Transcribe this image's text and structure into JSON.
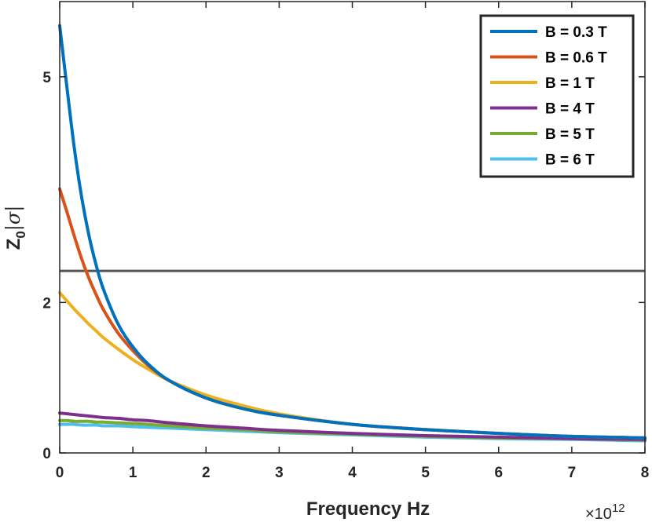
{
  "chart_data": {
    "type": "line",
    "xlabel": "Frequency Hz",
    "ylabel_main": "Z",
    "ylabel_sub": "0",
    "ylabel_sigma": "|σ|",
    "x_multiplier_prefix": "×10",
    "x_multiplier_exp": "12",
    "xlim": [
      0,
      8
    ],
    "ylim": [
      0,
      6
    ],
    "xticks": [
      0,
      1,
      2,
      3,
      4,
      5,
      6,
      7,
      8
    ],
    "xtick_labels": [
      "0",
      "1",
      "2",
      "3",
      "4",
      "5",
      "6",
      "7",
      "8"
    ],
    "yticks": [
      0,
      2,
      5
    ],
    "ytick_labels": [
      "0",
      "2",
      "5"
    ],
    "legend_position": "top-right",
    "grid": false,
    "reference_line": {
      "y": 2.42,
      "color": "#555555"
    },
    "x": [
      0,
      0.1,
      0.2,
      0.3,
      0.4,
      0.5,
      0.6,
      0.8,
      1.0,
      1.2,
      1.5,
      2.0,
      2.5,
      3.0,
      4.0,
      5.0,
      6.0,
      7.0,
      8.0
    ],
    "series": [
      {
        "name": "B = 0.3 T",
        "color": "#0072BD",
        "values": [
          5.68,
          4.85,
          4.05,
          3.4,
          2.89,
          2.49,
          2.17,
          1.71,
          1.41,
          1.19,
          0.96,
          0.73,
          0.59,
          0.5,
          0.38,
          0.31,
          0.26,
          0.22,
          0.2
        ]
      },
      {
        "name": "B = 0.6 T",
        "color": "#D95319",
        "values": [
          3.51,
          3.2,
          2.88,
          2.58,
          2.32,
          2.1,
          1.9,
          1.59,
          1.36,
          1.17,
          0.96,
          0.73,
          0.59,
          0.5,
          0.38,
          0.31,
          0.26,
          0.22,
          0.2
        ]
      },
      {
        "name": "B = 1 T",
        "color": "#EDB120",
        "values": [
          2.13,
          2.02,
          1.91,
          1.81,
          1.71,
          1.62,
          1.53,
          1.38,
          1.24,
          1.12,
          0.96,
          0.77,
          0.63,
          0.52,
          0.38,
          0.31,
          0.26,
          0.22,
          0.2
        ]
      },
      {
        "name": "B = 4 T",
        "color": "#7E2F8E",
        "values": [
          0.53,
          0.52,
          0.51,
          0.5,
          0.49,
          0.48,
          0.47,
          0.46,
          0.44,
          0.43,
          0.4,
          0.36,
          0.33,
          0.3,
          0.26,
          0.23,
          0.21,
          0.19,
          0.18
        ]
      },
      {
        "name": "B = 5 T",
        "color": "#77AC30",
        "values": [
          0.43,
          0.43,
          0.42,
          0.42,
          0.42,
          0.41,
          0.41,
          0.4,
          0.39,
          0.38,
          0.36,
          0.33,
          0.31,
          0.28,
          0.25,
          0.22,
          0.2,
          0.19,
          0.17
        ]
      },
      {
        "name": "B = 6 T",
        "color": "#4DBEEE",
        "values": [
          0.38,
          0.38,
          0.38,
          0.37,
          0.37,
          0.37,
          0.36,
          0.36,
          0.35,
          0.34,
          0.33,
          0.31,
          0.29,
          0.27,
          0.24,
          0.21,
          0.19,
          0.18,
          0.16
        ]
      }
    ]
  }
}
